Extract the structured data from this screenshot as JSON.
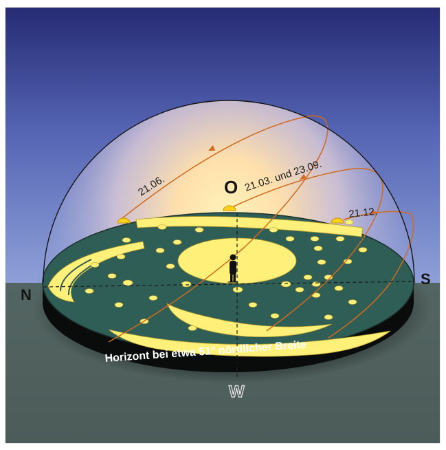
{
  "diagram": {
    "directions": {
      "north": "N",
      "east": "O",
      "south": "S",
      "west": "W"
    },
    "sun_paths": [
      {
        "date": "21.06."
      },
      {
        "date": "21.03. und 23.09."
      },
      {
        "date": "21.12."
      }
    ],
    "caption": "Horizont bei etwa 51° nördlicher Breite",
    "colors": {
      "sky_top": "#2a2f78",
      "sky_mid": "#6f83c8",
      "glow": "#ffe3a8",
      "ground": "#536460",
      "disc_green": "#2f5e56",
      "gold": "#fff07a",
      "sun": "#ffd21e",
      "arc_orange": "#d06a1c"
    }
  }
}
